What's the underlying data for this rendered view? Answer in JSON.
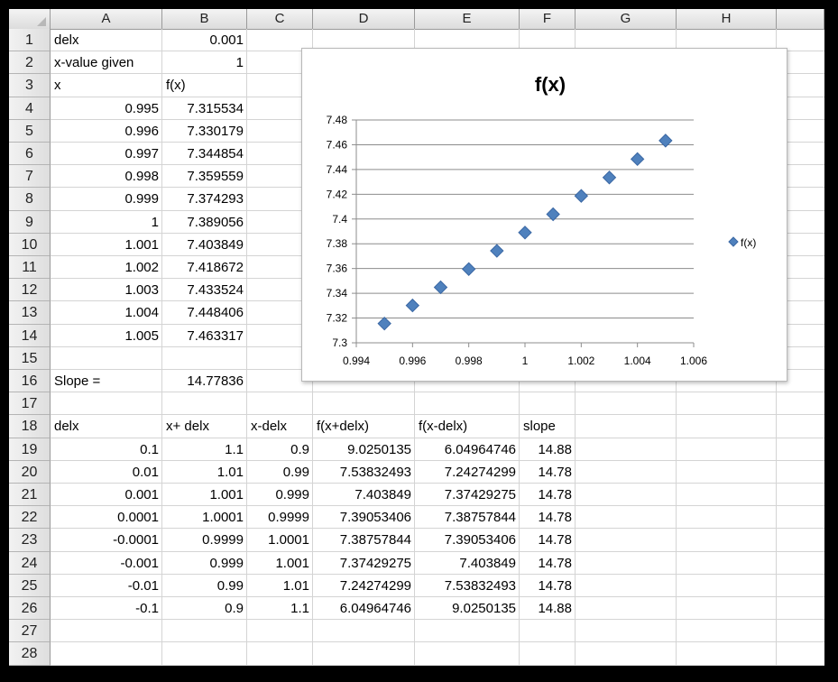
{
  "columns": [
    "A",
    "B",
    "C",
    "D",
    "E",
    "F",
    "G",
    "H"
  ],
  "rows": [
    "1",
    "2",
    "3",
    "4",
    "5",
    "6",
    "7",
    "8",
    "9",
    "10",
    "11",
    "12",
    "13",
    "14",
    "15",
    "16",
    "17",
    "18",
    "19",
    "20",
    "21",
    "22",
    "23",
    "24",
    "25",
    "26",
    "27",
    "28"
  ],
  "cells": {
    "A1": "delx",
    "B1": "0.001",
    "A2": "x-value given",
    "B2": "1",
    "A3": "x",
    "B3": "f(x)",
    "A4": "0.995",
    "B4": "7.315534",
    "A5": "0.996",
    "B5": "7.330179",
    "A6": "0.997",
    "B6": "7.344854",
    "A7": "0.998",
    "B7": "7.359559",
    "A8": "0.999",
    "B8": "7.374293",
    "A9": "1",
    "B9": "7.389056",
    "A10": "1.001",
    "B10": "7.403849",
    "A11": "1.002",
    "B11": "7.418672",
    "A12": "1.003",
    "B12": "7.433524",
    "A13": "1.004",
    "B13": "7.448406",
    "A14": "1.005",
    "B14": "7.463317",
    "A16": "Slope =",
    "B16": "14.77836",
    "A18": "delx",
    "B18": "x+ delx",
    "C18": "x-delx",
    "D18": "f(x+delx)",
    "E18": "f(x-delx)",
    "F18": "slope",
    "A19": "0.1",
    "B19": "1.1",
    "C19": "0.9",
    "D19": "9.0250135",
    "E19": "6.04964746",
    "F19": "14.88",
    "A20": "0.01",
    "B20": "1.01",
    "C20": "0.99",
    "D20": "7.53832493",
    "E20": "7.24274299",
    "F20": "14.78",
    "A21": "0.001",
    "B21": "1.001",
    "C21": "0.999",
    "D21": "7.403849",
    "E21": "7.37429275",
    "F21": "14.78",
    "A22": "0.0001",
    "B22": "1.0001",
    "C22": "0.9999",
    "D22": "7.39053406",
    "E22": "7.38757844",
    "F22": "14.78",
    "A23": "-0.0001",
    "B23": "0.9999",
    "C23": "1.0001",
    "D23": "7.38757844",
    "E23": "7.39053406",
    "F23": "14.78",
    "A24": "-0.001",
    "B24": "0.999",
    "C24": "1.001",
    "D24": "7.37429275",
    "E24": "7.403849",
    "F24": "14.78",
    "A25": "-0.01",
    "B25": "0.99",
    "C25": "1.01",
    "D25": "7.24274299",
    "E25": "7.53832493",
    "F25": "14.78",
    "A26": "-0.1",
    "B26": "0.9",
    "C26": "1.1",
    "D26": "6.04964746",
    "E26": "9.0250135",
    "F26": "14.88"
  },
  "left_aligned": [
    "A1",
    "A2",
    "A3",
    "B3",
    "A16",
    "A18",
    "B18",
    "C18",
    "D18",
    "E18",
    "F18"
  ],
  "chart_data": {
    "type": "scatter",
    "title": "f(x)",
    "series": [
      {
        "name": "f(x)",
        "color": "#4f81bd",
        "x": [
          0.995,
          0.996,
          0.997,
          0.998,
          0.999,
          1,
          1.001,
          1.002,
          1.003,
          1.004,
          1.005
        ],
        "y": [
          7.315534,
          7.330179,
          7.344854,
          7.359559,
          7.374293,
          7.389056,
          7.403849,
          7.418672,
          7.433524,
          7.448406,
          7.463317
        ]
      }
    ],
    "xlim": [
      0.994,
      1.006
    ],
    "ylim": [
      7.3,
      7.48
    ],
    "x_ticks": [
      "0.994",
      "0.996",
      "0.998",
      "1",
      "1.002",
      "1.004",
      "1.006"
    ],
    "y_ticks": [
      "7.3",
      "7.32",
      "7.34",
      "7.36",
      "7.38",
      "7.4",
      "7.42",
      "7.44",
      "7.46",
      "7.48"
    ],
    "grid": "horizontal",
    "legend": "right"
  }
}
